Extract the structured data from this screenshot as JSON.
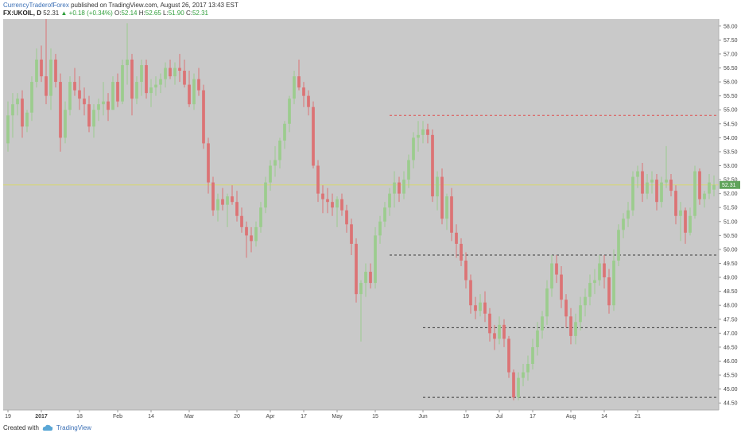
{
  "header": {
    "publisher": "CurrencyTraderofForex",
    "published_text": "published on TradingView.com, August 26, 2017 13:43 EST",
    "symbol": "FX:UKOIL, D",
    "last": "52.31",
    "change": "▲ +0.18 (+0.34%)",
    "ohlc_labels": [
      "O:",
      "H:",
      "L:",
      "C:"
    ],
    "ohlc_values": [
      "52.14",
      "52.65",
      "51.90",
      "52.31"
    ]
  },
  "footer": {
    "created_with": "Created with",
    "brand": "TradingView"
  },
  "colors": {
    "background": "#c9c9c9",
    "bull": "#9ccc8e",
    "bear": "#dc7375",
    "resistance": "#e05050",
    "support": "#3a3a3a",
    "last_price_line": "#d8d870",
    "last_price_tag": "#5fa35a"
  },
  "chart_data": {
    "type": "candlestick",
    "title": "",
    "xlabel": "",
    "ylabel": "",
    "ylim": [
      44.25,
      58.25
    ],
    "y_ticks": [
      "44.50",
      "45.00",
      "45.50",
      "46.00",
      "46.50",
      "47.00",
      "47.50",
      "48.00",
      "48.50",
      "49.00",
      "49.50",
      "50.00",
      "50.50",
      "51.00",
      "51.50",
      "52.00",
      "52.50",
      "53.00",
      "53.50",
      "54.00",
      "54.50",
      "55.00",
      "55.50",
      "56.00",
      "56.50",
      "57.00",
      "57.50",
      "58.00"
    ],
    "x_ticks": [
      {
        "label": "19",
        "index": 0
      },
      {
        "label": "2017",
        "index": 7,
        "bold": true
      },
      {
        "label": "18",
        "index": 15
      },
      {
        "label": "Feb",
        "index": 23
      },
      {
        "label": "14",
        "index": 30
      },
      {
        "label": "Mar",
        "index": 38
      },
      {
        "label": "20",
        "index": 48
      },
      {
        "label": "Apr",
        "index": 55
      },
      {
        "label": "17",
        "index": 62
      },
      {
        "label": "May",
        "index": 69
      },
      {
        "label": "15",
        "index": 77
      },
      {
        "label": "Jun",
        "index": 87
      },
      {
        "label": "19",
        "index": 96
      },
      {
        "label": "Jul",
        "index": 103
      },
      {
        "label": "17",
        "index": 110
      },
      {
        "label": "Aug",
        "index": 118
      },
      {
        "label": "14",
        "index": 125
      },
      {
        "label": "21",
        "index": 132
      }
    ],
    "last_price": 52.31,
    "horizontal_lines": [
      {
        "value": 54.8,
        "style": "dashed",
        "color": "#e05050",
        "from_index": 80
      },
      {
        "value": 49.8,
        "style": "dashed",
        "color": "#3a3a3a",
        "from_index": 80
      },
      {
        "value": 47.2,
        "style": "dashed",
        "color": "#3a3a3a",
        "from_index": 87
      },
      {
        "value": 44.7,
        "style": "dashed",
        "color": "#3a3a3a",
        "from_index": 87
      }
    ],
    "candles": [
      [
        53.8,
        55.3,
        53.5,
        54.8
      ],
      [
        54.8,
        55.6,
        54.0,
        55.2
      ],
      [
        55.2,
        55.6,
        54.8,
        55.4
      ],
      [
        55.4,
        55.7,
        54.0,
        54.4
      ],
      [
        54.4,
        55.0,
        54.2,
        54.9
      ],
      [
        54.9,
        56.2,
        54.6,
        56.0
      ],
      [
        56.0,
        57.2,
        55.8,
        56.8
      ],
      [
        56.8,
        57.3,
        56.0,
        56.2
      ],
      [
        56.2,
        58.3,
        55.2,
        55.5
      ],
      [
        55.5,
        57.2,
        55.0,
        56.8
      ],
      [
        56.8,
        57.0,
        55.8,
        56.0
      ],
      [
        56.0,
        56.3,
        53.5,
        54.0
      ],
      [
        54.0,
        55.3,
        53.8,
        55.0
      ],
      [
        55.0,
        56.2,
        54.8,
        56.0
      ],
      [
        56.0,
        56.5,
        55.5,
        55.7
      ],
      [
        55.7,
        56.2,
        55.0,
        55.4
      ],
      [
        55.4,
        55.8,
        54.8,
        55.2
      ],
      [
        55.2,
        55.5,
        54.2,
        54.4
      ],
      [
        54.4,
        55.2,
        54.0,
        55.0
      ],
      [
        55.0,
        55.4,
        54.6,
        55.2
      ],
      [
        55.2,
        56.0,
        54.8,
        55.3
      ],
      [
        55.3,
        55.6,
        54.6,
        55.0
      ],
      [
        55.0,
        56.2,
        55.0,
        56.0
      ],
      [
        56.0,
        56.3,
        55.1,
        55.3
      ],
      [
        55.3,
        56.8,
        55.2,
        56.6
      ],
      [
        56.6,
        58.1,
        55.9,
        56.8
      ],
      [
        56.8,
        57.0,
        54.8,
        55.4
      ],
      [
        55.4,
        56.2,
        55.2,
        56.0
      ],
      [
        56.0,
        56.8,
        55.5,
        56.6
      ],
      [
        56.6,
        56.8,
        55.4,
        55.6
      ],
      [
        55.6,
        56.1,
        55.1,
        55.8
      ],
      [
        55.8,
        56.2,
        55.5,
        55.9
      ],
      [
        55.9,
        56.3,
        55.6,
        56.1
      ],
      [
        56.1,
        56.7,
        55.8,
        56.5
      ],
      [
        56.5,
        56.8,
        56.1,
        56.2
      ],
      [
        56.2,
        56.7,
        55.9,
        56.5
      ],
      [
        56.5,
        57.0,
        56.0,
        56.4
      ],
      [
        56.4,
        56.8,
        55.8,
        55.9
      ],
      [
        55.9,
        56.4,
        55.1,
        55.2
      ],
      [
        55.2,
        56.3,
        55.0,
        56.1
      ],
      [
        56.1,
        56.5,
        55.5,
        55.7
      ],
      [
        55.7,
        55.9,
        53.6,
        53.8
      ],
      [
        53.8,
        54.0,
        52.0,
        52.4
      ],
      [
        52.4,
        52.6,
        51.2,
        51.4
      ],
      [
        51.4,
        52.0,
        51.0,
        51.8
      ],
      [
        51.8,
        52.2,
        51.4,
        51.6
      ],
      [
        51.6,
        52.0,
        50.8,
        51.9
      ],
      [
        51.9,
        52.3,
        51.6,
        51.7
      ],
      [
        51.7,
        52.1,
        51.0,
        51.2
      ],
      [
        51.2,
        51.5,
        50.6,
        50.8
      ],
      [
        50.8,
        51.0,
        49.7,
        50.5
      ],
      [
        50.5,
        50.8,
        49.9,
        50.3
      ],
      [
        50.3,
        51.0,
        50.1,
        50.8
      ],
      [
        50.8,
        51.7,
        50.6,
        51.5
      ],
      [
        51.5,
        52.6,
        51.3,
        52.4
      ],
      [
        52.4,
        53.2,
        52.1,
        53.0
      ],
      [
        53.0,
        53.7,
        52.6,
        53.2
      ],
      [
        53.2,
        54.0,
        52.9,
        53.9
      ],
      [
        53.9,
        54.6,
        53.6,
        54.5
      ],
      [
        54.5,
        55.5,
        54.2,
        55.4
      ],
      [
        55.4,
        56.4,
        55.2,
        56.2
      ],
      [
        56.2,
        56.8,
        55.7,
        55.8
      ],
      [
        55.8,
        56.0,
        55.1,
        55.5
      ],
      [
        55.5,
        55.7,
        54.8,
        55.1
      ],
      [
        55.1,
        55.3,
        52.9,
        53.0
      ],
      [
        53.0,
        53.2,
        51.7,
        52.0
      ],
      [
        52.0,
        52.3,
        51.3,
        51.8
      ],
      [
        51.8,
        52.2,
        51.3,
        51.7
      ],
      [
        51.7,
        52.0,
        51.2,
        51.5
      ],
      [
        51.5,
        51.9,
        50.8,
        51.8
      ],
      [
        51.8,
        52.0,
        51.2,
        51.4
      ],
      [
        51.4,
        51.6,
        50.6,
        50.9
      ],
      [
        50.9,
        51.1,
        49.8,
        50.2
      ],
      [
        50.2,
        50.4,
        48.1,
        48.4
      ],
      [
        48.4,
        48.9,
        46.7,
        48.8
      ],
      [
        48.8,
        49.5,
        48.3,
        49.2
      ],
      [
        49.2,
        49.5,
        48.6,
        48.8
      ],
      [
        48.8,
        50.8,
        48.6,
        50.5
      ],
      [
        50.5,
        51.2,
        50.2,
        51.0
      ],
      [
        51.0,
        51.7,
        50.8,
        51.5
      ],
      [
        51.5,
        52.2,
        51.2,
        52.0
      ],
      [
        52.0,
        52.8,
        51.5,
        52.4
      ],
      [
        52.4,
        52.6,
        51.7,
        52.0
      ],
      [
        52.0,
        52.8,
        51.8,
        52.5
      ],
      [
        52.5,
        53.4,
        52.2,
        53.2
      ],
      [
        53.2,
        54.2,
        52.9,
        54.0
      ],
      [
        54.0,
        54.6,
        53.5,
        54.1
      ],
      [
        54.1,
        54.6,
        53.8,
        54.3
      ],
      [
        54.3,
        54.5,
        53.8,
        54.1
      ],
      [
        54.1,
        54.3,
        51.7,
        51.9
      ],
      [
        51.9,
        52.8,
        51.4,
        52.6
      ],
      [
        52.6,
        52.9,
        50.9,
        51.1
      ],
      [
        51.1,
        52.0,
        50.7,
        51.9
      ],
      [
        51.9,
        52.2,
        50.3,
        50.6
      ],
      [
        50.6,
        50.9,
        49.7,
        50.2
      ],
      [
        50.2,
        50.4,
        49.4,
        49.6
      ],
      [
        49.6,
        49.9,
        48.6,
        48.9
      ],
      [
        48.9,
        49.1,
        47.7,
        48.0
      ],
      [
        48.0,
        48.3,
        47.5,
        47.8
      ],
      [
        47.8,
        48.4,
        47.6,
        48.1
      ],
      [
        48.1,
        48.5,
        47.4,
        47.7
      ],
      [
        47.7,
        47.9,
        46.7,
        47.0
      ],
      [
        47.0,
        47.3,
        46.4,
        46.8
      ],
      [
        46.8,
        47.6,
        46.6,
        47.3
      ],
      [
        47.3,
        47.5,
        46.5,
        46.8
      ],
      [
        46.8,
        46.9,
        45.4,
        45.6
      ],
      [
        45.6,
        45.7,
        44.6,
        44.7
      ],
      [
        44.7,
        45.6,
        44.6,
        45.4
      ],
      [
        45.4,
        45.9,
        45.1,
        45.6
      ],
      [
        45.6,
        46.2,
        45.3,
        45.9
      ],
      [
        45.9,
        46.8,
        45.7,
        46.5
      ],
      [
        46.5,
        47.4,
        46.2,
        47.1
      ],
      [
        47.1,
        47.8,
        46.8,
        47.6
      ],
      [
        47.6,
        48.9,
        47.3,
        48.6
      ],
      [
        48.6,
        49.8,
        48.3,
        49.5
      ],
      [
        49.5,
        49.8,
        48.8,
        49.1
      ],
      [
        49.1,
        49.4,
        47.9,
        48.2
      ],
      [
        48.2,
        48.4,
        47.2,
        47.6
      ],
      [
        47.6,
        47.9,
        46.6,
        46.9
      ],
      [
        46.9,
        47.7,
        46.6,
        47.4
      ],
      [
        47.4,
        48.3,
        47.1,
        48.0
      ],
      [
        48.0,
        48.6,
        47.6,
        48.3
      ],
      [
        48.3,
        49.1,
        48.0,
        48.8
      ],
      [
        48.8,
        49.3,
        48.4,
        48.9
      ],
      [
        48.9,
        49.8,
        48.7,
        49.5
      ],
      [
        49.5,
        49.8,
        48.6,
        49.0
      ],
      [
        49.0,
        49.3,
        47.7,
        48.0
      ],
      [
        48.0,
        50.0,
        47.8,
        49.6
      ],
      [
        49.6,
        50.9,
        49.4,
        50.7
      ],
      [
        50.7,
        51.3,
        50.4,
        51.1
      ],
      [
        51.1,
        51.7,
        50.8,
        51.4
      ],
      [
        51.4,
        52.8,
        51.2,
        52.6
      ],
      [
        52.6,
        53.0,
        52.2,
        52.8
      ],
      [
        52.8,
        53.1,
        51.7,
        52.0
      ],
      [
        52.0,
        52.7,
        51.8,
        52.4
      ],
      [
        52.4,
        52.8,
        52.0,
        52.5
      ],
      [
        52.5,
        52.7,
        51.4,
        51.7
      ],
      [
        51.7,
        52.6,
        51.5,
        52.4
      ],
      [
        52.4,
        53.7,
        52.2,
        52.5
      ],
      [
        52.5,
        52.7,
        51.9,
        52.1
      ],
      [
        52.1,
        52.3,
        50.9,
        51.2
      ],
      [
        51.2,
        51.7,
        50.3,
        51.4
      ],
      [
        51.4,
        51.5,
        50.2,
        50.6
      ],
      [
        50.6,
        51.5,
        50.5,
        51.2
      ],
      [
        51.2,
        53.0,
        51.1,
        52.8
      ],
      [
        52.8,
        52.9,
        51.6,
        51.8
      ],
      [
        51.8,
        52.1,
        51.5,
        52.0
      ],
      [
        52.0,
        52.7,
        51.8,
        52.4
      ],
      [
        52.14,
        52.65,
        51.9,
        52.31
      ]
    ]
  }
}
